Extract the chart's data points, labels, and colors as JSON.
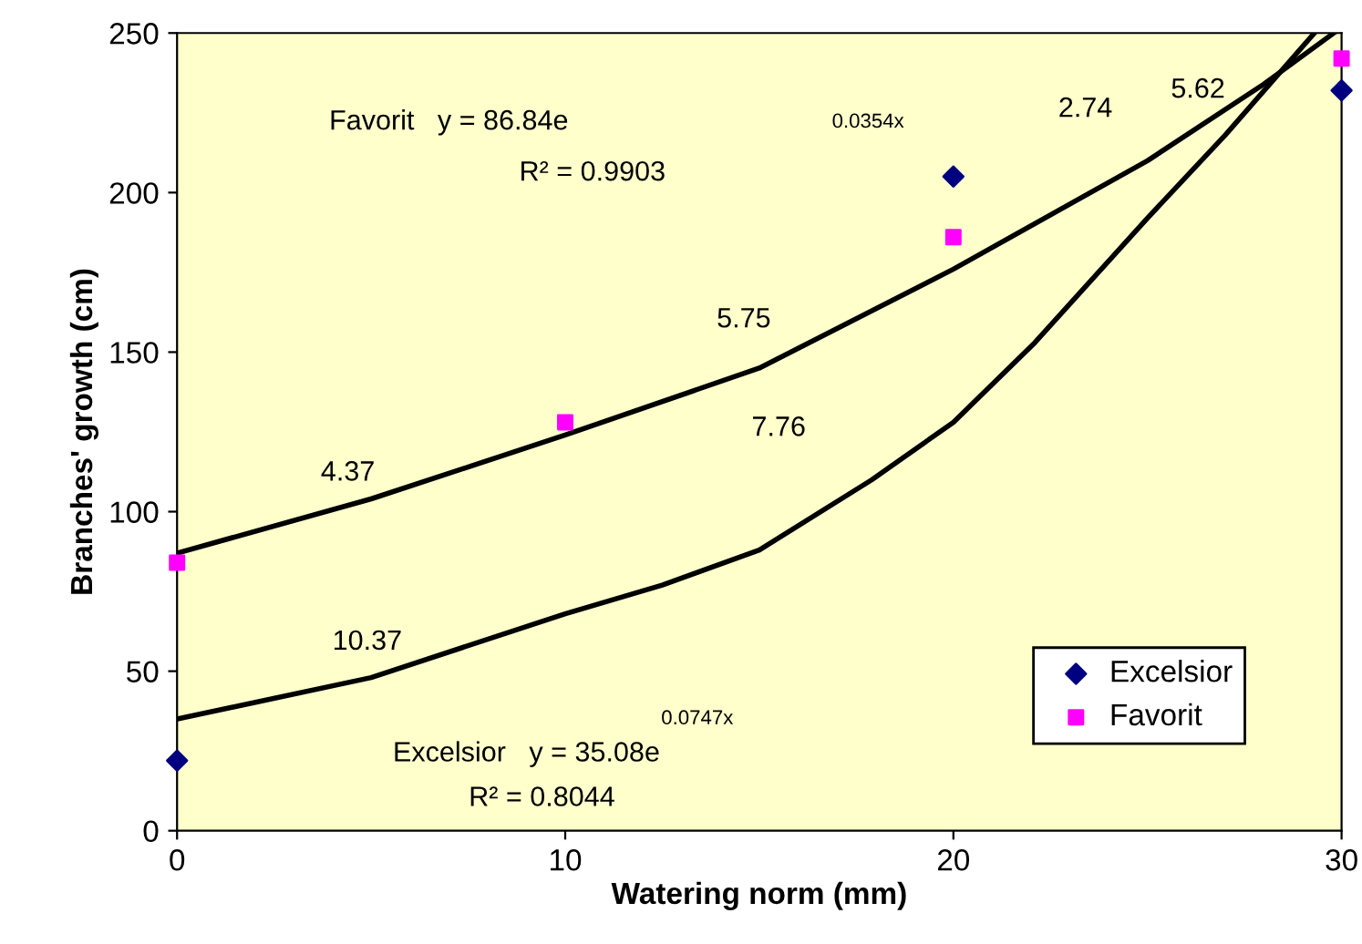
{
  "chart_data": {
    "type": "scatter",
    "xlabel": "Watering norm (mm)",
    "ylabel": "Branches' growth (cm)",
    "xlim": [
      0,
      30
    ],
    "ylim": [
      0,
      250
    ],
    "xticks": [
      0,
      10,
      20,
      30
    ],
    "yticks": [
      0,
      50,
      100,
      150,
      200,
      250
    ],
    "grid": false,
    "legend": "bottom right",
    "series": [
      {
        "name": "Excelsior",
        "color": "#000080",
        "marker": "diamond",
        "x": [
          0,
          10,
          20,
          30
        ],
        "values": [
          22,
          null,
          205,
          232
        ]
      },
      {
        "name": "Favorit",
        "color": "#ff00ff",
        "marker": "square",
        "x": [
          0,
          10,
          20,
          30
        ],
        "values": [
          84,
          128,
          186,
          242
        ]
      },
      {
        "type": "line",
        "color": "#000000",
        "marker": "none",
        "x": [
          0,
          5,
          10,
          15,
          20,
          25,
          28,
          29.8
        ],
        "values": [
          87,
          104,
          124,
          145,
          176,
          210,
          234,
          250
        ]
      },
      {
        "type": "line",
        "color": "#000000",
        "marker": "none",
        "x": [
          0,
          5,
          10,
          12.5,
          15,
          17.9,
          20,
          22.1,
          25,
          27,
          29.3
        ],
        "values": [
          35,
          48,
          68,
          77,
          88,
          110,
          128,
          153,
          192,
          218,
          250
        ]
      }
    ],
    "annotations": [
      "Favorit   y = 86.84e",
      "0.0354x",
      "R² = 0.9903",
      "Excelsior   y = 35.08e",
      "0.0747x",
      "R² = 0.8044",
      "4.37",
      "5.75",
      "2.74",
      "5.62",
      "10.37",
      "7.76"
    ]
  }
}
